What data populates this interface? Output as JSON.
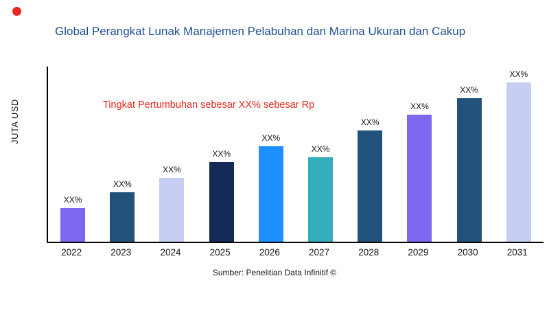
{
  "page": {
    "title": "Global Perangkat Lunak Manajemen Pelabuhan dan Marina Ukuran dan Cakup",
    "annotation": "Tingkat Pertumbuhan sebesar XX% sebesar Rp",
    "source": "Sumber: Penelitian Data Infinitif ©",
    "brand_dot_color": "#e8261f",
    "title_color": "#1d4f91",
    "annotation_color": "#e8281e"
  },
  "chart_data": {
    "type": "bar",
    "title": "Global Perangkat Lunak Manajemen Pelabuhan dan Marina Ukuran dan Cakup",
    "xlabel": "",
    "ylabel": "JUTA USD",
    "categories": [
      "2022",
      "2023",
      "2024",
      "2025",
      "2026",
      "2027",
      "2028",
      "2029",
      "2030",
      "2031"
    ],
    "values": [
      21,
      31,
      40,
      50,
      60,
      53,
      70,
      80,
      90,
      100
    ],
    "bar_labels": [
      "XX%",
      "XX%",
      "XX%",
      "XX%",
      "XX%",
      "XX%",
      "XX%",
      "XX%",
      "XX%",
      "XX%"
    ],
    "bar_colors": [
      "#7b68ee",
      "#21527b",
      "#c7cdf2",
      "#152a56",
      "#1e8fff",
      "#35aebc",
      "#21527b",
      "#7b68ee",
      "#21527b",
      "#c7cdf2"
    ],
    "ylim": [
      0,
      110
    ],
    "grid": false,
    "legend": false,
    "annotation": "Tingkat Pertumbuhan sebesar XX% sebesar Rp"
  }
}
